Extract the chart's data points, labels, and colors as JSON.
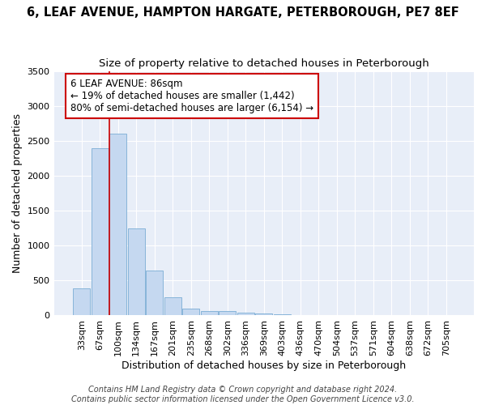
{
  "title_line1": "6, LEAF AVENUE, HAMPTON HARGATE, PETERBOROUGH, PE7 8EF",
  "title_line2": "Size of property relative to detached houses in Peterborough",
  "xlabel": "Distribution of detached houses by size in Peterborough",
  "ylabel": "Number of detached properties",
  "categories": [
    "33sqm",
    "67sqm",
    "100sqm",
    "134sqm",
    "167sqm",
    "201sqm",
    "235sqm",
    "268sqm",
    "302sqm",
    "336sqm",
    "369sqm",
    "403sqm",
    "436sqm",
    "470sqm",
    "504sqm",
    "537sqm",
    "571sqm",
    "604sqm",
    "638sqm",
    "672sqm",
    "705sqm"
  ],
  "values": [
    390,
    2400,
    2600,
    1240,
    640,
    260,
    95,
    60,
    55,
    35,
    20,
    15,
    0,
    0,
    0,
    0,
    0,
    0,
    0,
    0,
    0
  ],
  "bar_color": "#c5d8f0",
  "bar_edge_color": "#7aadd4",
  "background_color": "#e8eef8",
  "grid_color": "#ffffff",
  "fig_background": "#ffffff",
  "vline_x": 1.5,
  "vline_color": "#cc0000",
  "annotation_text": "6 LEAF AVENUE: 86sqm\n← 19% of detached houses are smaller (1,442)\n80% of semi-detached houses are larger (6,154) →",
  "annotation_box_color": "#ffffff",
  "annotation_box_edge": "#cc0000",
  "footer_line1": "Contains HM Land Registry data © Crown copyright and database right 2024.",
  "footer_line2": "Contains public sector information licensed under the Open Government Licence v3.0.",
  "ylim": [
    0,
    3500
  ],
  "yticks": [
    0,
    500,
    1000,
    1500,
    2000,
    2500,
    3000,
    3500
  ],
  "title_fontsize": 10.5,
  "subtitle_fontsize": 9.5,
  "axis_label_fontsize": 9,
  "tick_fontsize": 8,
  "footer_fontsize": 7,
  "ann_fontsize": 8.5
}
